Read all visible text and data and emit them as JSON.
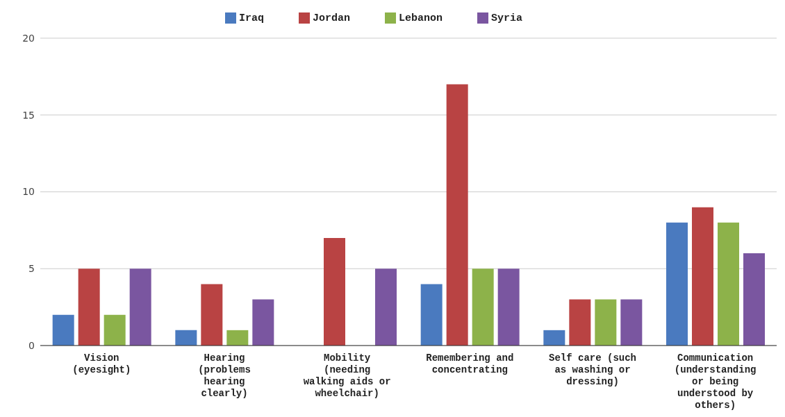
{
  "chart_data": {
    "type": "bar",
    "categories": [
      "Vision (eyesight)",
      "Hearing (problems hearing clearly)",
      "Mobility (needing walking aids or wheelchair)",
      "Remembering and concentrating",
      "Self care (such as washing or dressing)",
      "Communication (understanding or being understood by others)"
    ],
    "series": [
      {
        "name": "Iraq",
        "color": "#4a7abf",
        "values": [
          2,
          1,
          0,
          4,
          1,
          8
        ]
      },
      {
        "name": "Jordan",
        "color": "#b94343",
        "values": [
          5,
          4,
          7,
          17,
          3,
          9
        ]
      },
      {
        "name": "Lebanon",
        "color": "#8db24a",
        "values": [
          2,
          1,
          0,
          5,
          3,
          8
        ]
      },
      {
        "name": "Syria",
        "color": "#7a56a0",
        "values": [
          5,
          3,
          5,
          5,
          3,
          6
        ]
      }
    ],
    "ylim": [
      0,
      20
    ],
    "yticks": [
      0,
      5,
      10,
      15,
      20
    ],
    "grid": "y",
    "legend": "top"
  }
}
